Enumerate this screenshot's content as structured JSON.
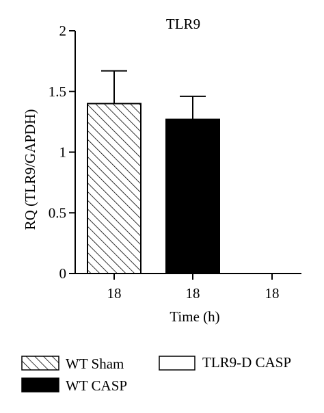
{
  "chart_data": {
    "type": "bar",
    "title": "TLR9",
    "xlabel": "Time (h)",
    "ylabel": "RQ (TLR9/GAPDH)",
    "ylim": [
      0,
      2
    ],
    "yticks": [
      0,
      0.5,
      1,
      1.5,
      2
    ],
    "ytick_labels": [
      "0",
      "0.5",
      "1",
      "1.5",
      "2"
    ],
    "categories": [
      "18",
      "18",
      "18"
    ],
    "series": [
      {
        "name": "WT Sham",
        "values": [
          1.4,
          null,
          null
        ],
        "errors": [
          0.27,
          null,
          null
        ],
        "fill": "hatched"
      },
      {
        "name": "WT CASP",
        "values": [
          null,
          1.27,
          null
        ],
        "errors": [
          null,
          0.19,
          null
        ],
        "fill": "#000000"
      },
      {
        "name": "TLR9-D CASP",
        "values": [
          null,
          null,
          0
        ],
        "errors": [
          null,
          null,
          null
        ],
        "fill": "#ffffff"
      }
    ],
    "legend_position": "bottom",
    "grid": false
  }
}
